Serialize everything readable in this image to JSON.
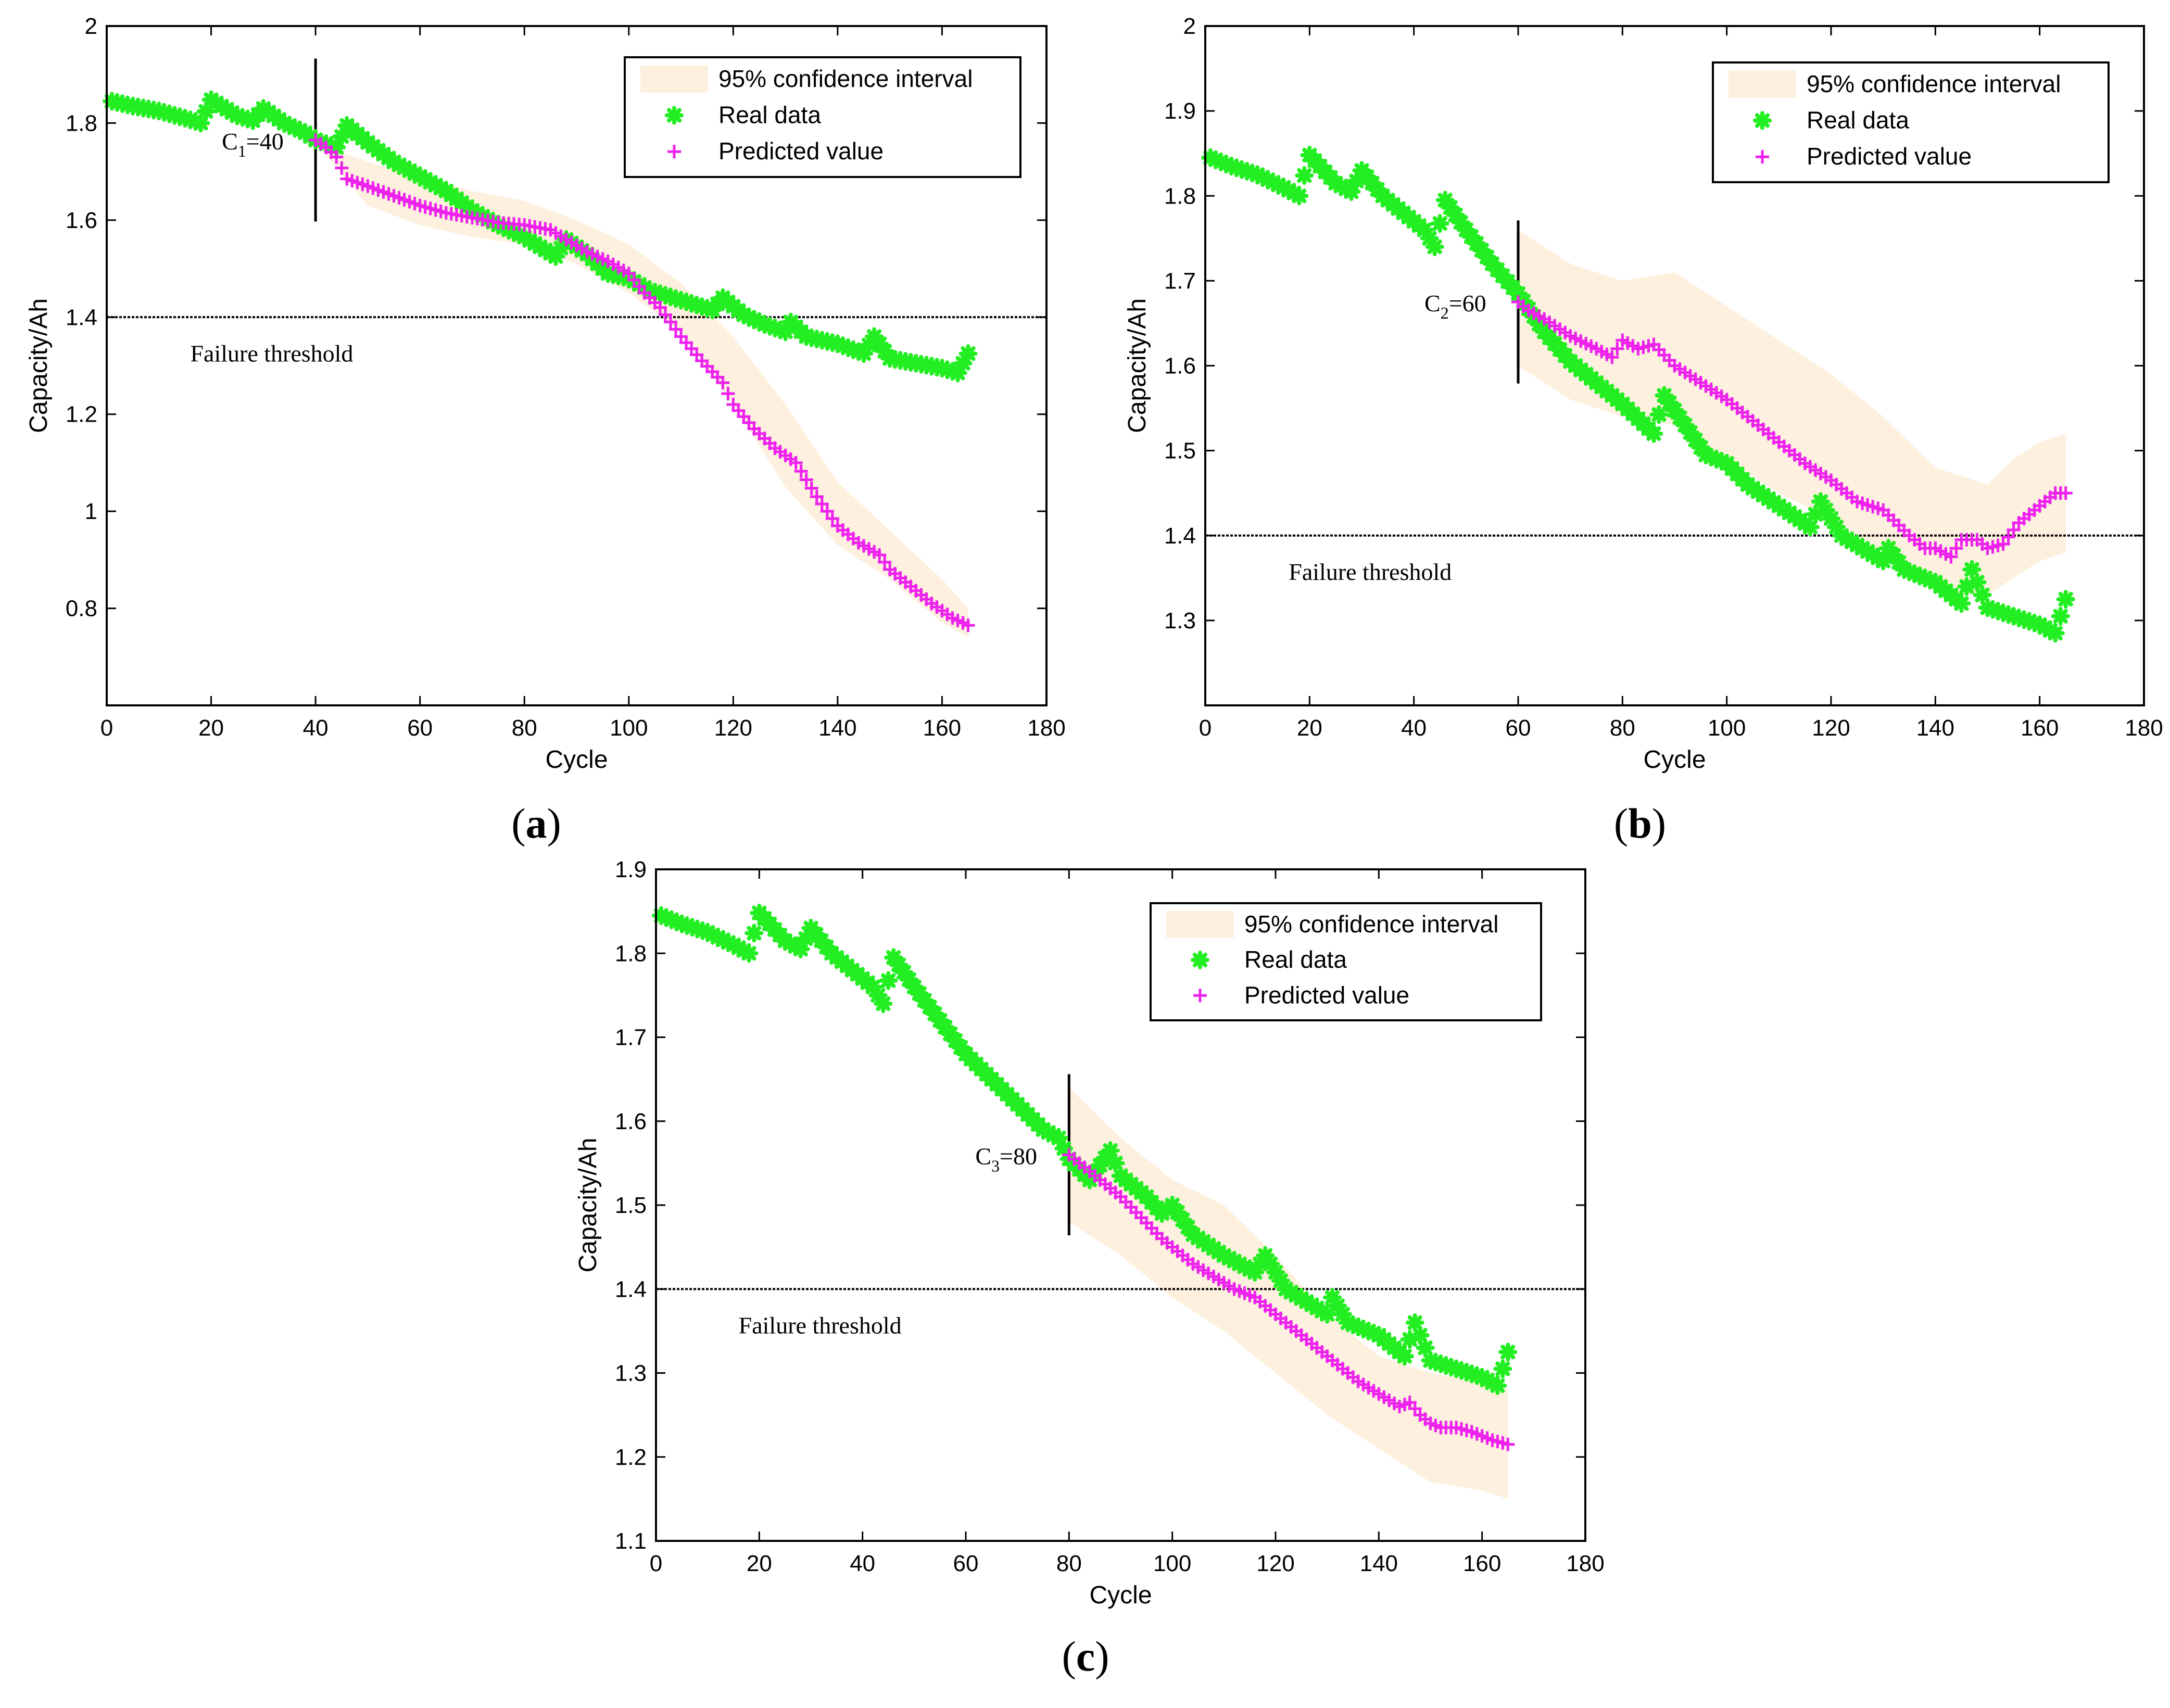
{
  "colors": {
    "real": "#22ee22",
    "predicted": "#ee22ee",
    "band": "#fdf0de",
    "axis": "#000000",
    "threshold": "#000000"
  },
  "chart_data": [
    {
      "id": "a",
      "type": "scatter",
      "panel_label": "a",
      "xlabel": "Cycle",
      "ylabel": "Capacity/Ah",
      "xlim": [
        0,
        180
      ],
      "ylim": [
        0.6,
        2.0
      ],
      "xticks": [
        0,
        20,
        40,
        60,
        80,
        100,
        120,
        140,
        160,
        180
      ],
      "yticks": [
        0.8,
        1.0,
        1.2,
        1.4,
        1.6,
        1.8,
        2.0
      ],
      "ytick_labels": [
        "0.8",
        "1",
        "1.2",
        "1.4",
        "1.6",
        "1.8",
        "2"
      ],
      "threshold": 1.4,
      "threshold_label": "Failure threshold",
      "start_cycle": 40,
      "start_label": {
        "prefix": "C",
        "sub": "1",
        "suffix": "=40"
      },
      "legend": {
        "position": "top-right",
        "entries": [
          "95% confidence interval",
          "Real data",
          "Predicted value"
        ]
      },
      "real_data": {
        "x": [
          1,
          5,
          10,
          15,
          18,
          20,
          22,
          25,
          28,
          30,
          34,
          38,
          40,
          44,
          46,
          50,
          55,
          60,
          65,
          70,
          75,
          80,
          86,
          88,
          92,
          96,
          100,
          104,
          110,
          116,
          118,
          122,
          126,
          130,
          131,
          134,
          140,
          145,
          147,
          150,
          155,
          160,
          163,
          165
        ],
        "y": [
          1.845,
          1.835,
          1.825,
          1.81,
          1.8,
          1.848,
          1.835,
          1.815,
          1.805,
          1.83,
          1.8,
          1.78,
          1.765,
          1.75,
          1.795,
          1.76,
          1.72,
          1.69,
          1.66,
          1.62,
          1.59,
          1.565,
          1.525,
          1.56,
          1.53,
          1.49,
          1.48,
          1.455,
          1.435,
          1.415,
          1.44,
          1.405,
          1.385,
          1.37,
          1.39,
          1.36,
          1.345,
          1.325,
          1.36,
          1.315,
          1.305,
          1.295,
          1.285,
          1.325
        ]
      },
      "predicted": {
        "x": [
          40,
          42,
          44,
          46,
          50,
          55,
          60,
          65,
          70,
          75,
          80,
          85,
          88,
          92,
          96,
          100,
          103,
          106,
          110,
          114,
          118,
          120,
          124,
          128,
          132,
          136,
          140,
          144,
          148,
          150,
          154,
          158,
          162,
          165
        ],
        "y": [
          1.765,
          1.75,
          1.73,
          1.685,
          1.67,
          1.65,
          1.63,
          1.615,
          1.605,
          1.595,
          1.59,
          1.58,
          1.56,
          1.535,
          1.515,
          1.49,
          1.45,
          1.42,
          1.36,
          1.31,
          1.265,
          1.22,
          1.17,
          1.13,
          1.1,
          1.03,
          0.97,
          0.935,
          0.91,
          0.88,
          0.845,
          0.81,
          0.78,
          0.765
        ]
      },
      "band_upper": {
        "x": [
          40,
          50,
          60,
          70,
          80,
          90,
          100,
          110,
          120,
          130,
          140,
          150,
          160,
          165
        ],
        "y": [
          1.76,
          1.72,
          1.69,
          1.66,
          1.64,
          1.6,
          1.55,
          1.47,
          1.36,
          1.22,
          1.06,
          0.96,
          0.86,
          0.8
        ]
      },
      "band_lower": {
        "x": [
          40,
          50,
          60,
          70,
          80,
          90,
          100,
          110,
          120,
          130,
          140,
          150,
          160,
          165
        ],
        "y": [
          1.76,
          1.63,
          1.59,
          1.565,
          1.55,
          1.51,
          1.45,
          1.37,
          1.22,
          1.05,
          0.93,
          0.86,
          0.77,
          0.74
        ]
      }
    },
    {
      "id": "b",
      "type": "scatter",
      "panel_label": "b",
      "xlabel": "Cycle",
      "ylabel": "Capacity/Ah",
      "xlim": [
        0,
        180
      ],
      "ylim": [
        1.2,
        2.0
      ],
      "xticks": [
        0,
        20,
        40,
        60,
        80,
        100,
        120,
        140,
        160,
        180
      ],
      "yticks": [
        1.3,
        1.4,
        1.5,
        1.6,
        1.7,
        1.8,
        1.9,
        2.0
      ],
      "ytick_labels": [
        "1.3",
        "1.4",
        "1.5",
        "1.6",
        "1.7",
        "1.8",
        "1.9",
        "2"
      ],
      "threshold": 1.4,
      "threshold_label": "Failure threshold",
      "start_cycle": 60,
      "start_label": {
        "prefix": "C",
        "sub": "2",
        "suffix": "=60"
      },
      "legend": {
        "position": "top-right",
        "entries": [
          "95% confidence interval",
          "Real data",
          "Predicted value"
        ]
      },
      "real_data": {
        "x": [
          1,
          5,
          10,
          15,
          18,
          20,
          22,
          25,
          28,
          30,
          34,
          38,
          42,
          44,
          46,
          50,
          55,
          60,
          65,
          70,
          75,
          80,
          86,
          88,
          92,
          96,
          100,
          104,
          110,
          116,
          118,
          122,
          126,
          130,
          131,
          134,
          140,
          145,
          147,
          150,
          155,
          160,
          163,
          165
        ],
        "y": [
          1.845,
          1.835,
          1.825,
          1.81,
          1.8,
          1.848,
          1.835,
          1.815,
          1.805,
          1.83,
          1.8,
          1.78,
          1.76,
          1.74,
          1.795,
          1.76,
          1.72,
          1.685,
          1.64,
          1.605,
          1.58,
          1.555,
          1.52,
          1.565,
          1.53,
          1.495,
          1.485,
          1.46,
          1.435,
          1.41,
          1.44,
          1.4,
          1.385,
          1.37,
          1.385,
          1.36,
          1.345,
          1.32,
          1.36,
          1.315,
          1.305,
          1.295,
          1.285,
          1.325
        ]
      },
      "predicted": {
        "x": [
          60,
          62,
          65,
          70,
          75,
          78,
          80,
          83,
          86,
          90,
          95,
          100,
          105,
          110,
          115,
          120,
          125,
          130,
          135,
          138,
          140,
          143,
          145,
          148,
          150,
          153,
          156,
          160,
          163,
          165
        ],
        "y": [
          1.675,
          1.665,
          1.655,
          1.635,
          1.62,
          1.61,
          1.63,
          1.62,
          1.625,
          1.6,
          1.58,
          1.56,
          1.535,
          1.51,
          1.485,
          1.465,
          1.44,
          1.43,
          1.4,
          1.385,
          1.385,
          1.375,
          1.395,
          1.395,
          1.385,
          1.39,
          1.415,
          1.435,
          1.45,
          1.45
        ]
      },
      "band_upper": {
        "x": [
          60,
          70,
          80,
          90,
          100,
          110,
          120,
          130,
          140,
          145,
          150,
          155,
          160,
          165
        ],
        "y": [
          1.76,
          1.72,
          1.7,
          1.71,
          1.67,
          1.63,
          1.59,
          1.54,
          1.48,
          1.47,
          1.46,
          1.49,
          1.51,
          1.52
        ]
      },
      "band_lower": {
        "x": [
          60,
          70,
          80,
          90,
          100,
          110,
          120,
          130,
          140,
          145,
          150,
          155,
          160,
          165
        ],
        "y": [
          1.6,
          1.56,
          1.54,
          1.53,
          1.49,
          1.45,
          1.42,
          1.38,
          1.34,
          1.33,
          1.33,
          1.35,
          1.37,
          1.38
        ]
      }
    },
    {
      "id": "c",
      "type": "scatter",
      "panel_label": "c",
      "xlabel": "Cycle",
      "ylabel": "Capacity/Ah",
      "xlim": [
        0,
        180
      ],
      "ylim": [
        1.1,
        1.9
      ],
      "xticks": [
        0,
        20,
        40,
        60,
        80,
        100,
        120,
        140,
        160,
        180
      ],
      "yticks": [
        1.1,
        1.2,
        1.3,
        1.4,
        1.5,
        1.6,
        1.7,
        1.8,
        1.9
      ],
      "ytick_labels": [
        "1.1",
        "1.2",
        "1.3",
        "1.4",
        "1.5",
        "1.6",
        "1.7",
        "1.8",
        "1.9"
      ],
      "threshold": 1.4,
      "threshold_label": "Failure threshold",
      "start_cycle": 80,
      "start_label": {
        "prefix": "C",
        "sub": "3",
        "suffix": "=80"
      },
      "legend": {
        "position": "top-right",
        "entries": [
          "95% confidence interval",
          "Real data",
          "Predicted value"
        ]
      },
      "real_data": {
        "x": [
          1,
          5,
          10,
          15,
          18,
          20,
          22,
          25,
          28,
          30,
          34,
          38,
          42,
          44,
          46,
          50,
          55,
          60,
          65,
          70,
          75,
          78,
          80,
          84,
          88,
          90,
          95,
          98,
          100,
          104,
          110,
          116,
          118,
          122,
          126,
          130,
          131,
          134,
          140,
          145,
          147,
          150,
          155,
          160,
          163,
          165
        ],
        "y": [
          1.845,
          1.835,
          1.825,
          1.81,
          1.8,
          1.848,
          1.835,
          1.815,
          1.805,
          1.83,
          1.8,
          1.78,
          1.76,
          1.74,
          1.795,
          1.76,
          1.72,
          1.68,
          1.65,
          1.62,
          1.59,
          1.58,
          1.555,
          1.53,
          1.565,
          1.535,
          1.51,
          1.49,
          1.5,
          1.465,
          1.44,
          1.42,
          1.44,
          1.4,
          1.385,
          1.37,
          1.39,
          1.36,
          1.345,
          1.32,
          1.36,
          1.315,
          1.305,
          1.295,
          1.285,
          1.325
        ]
      },
      "predicted": {
        "x": [
          80,
          83,
          86,
          90,
          94,
          98,
          100,
          104,
          108,
          112,
          116,
          120,
          124,
          128,
          132,
          136,
          140,
          144,
          146,
          148,
          150,
          152,
          155,
          158,
          162,
          165
        ],
        "y": [
          1.56,
          1.545,
          1.53,
          1.51,
          1.485,
          1.46,
          1.45,
          1.43,
          1.415,
          1.4,
          1.39,
          1.37,
          1.35,
          1.33,
          1.31,
          1.29,
          1.275,
          1.26,
          1.265,
          1.25,
          1.24,
          1.235,
          1.235,
          1.23,
          1.22,
          1.215
        ]
      },
      "band_upper": {
        "x": [
          80,
          90,
          100,
          110,
          120,
          130,
          140,
          150,
          160,
          165
        ],
        "y": [
          1.64,
          1.58,
          1.53,
          1.5,
          1.44,
          1.37,
          1.32,
          1.3,
          1.29,
          1.28
        ]
      },
      "band_lower": {
        "x": [
          80,
          90,
          100,
          110,
          120,
          130,
          140,
          150,
          160,
          165
        ],
        "y": [
          1.48,
          1.44,
          1.39,
          1.35,
          1.3,
          1.25,
          1.21,
          1.17,
          1.16,
          1.15
        ]
      }
    }
  ]
}
